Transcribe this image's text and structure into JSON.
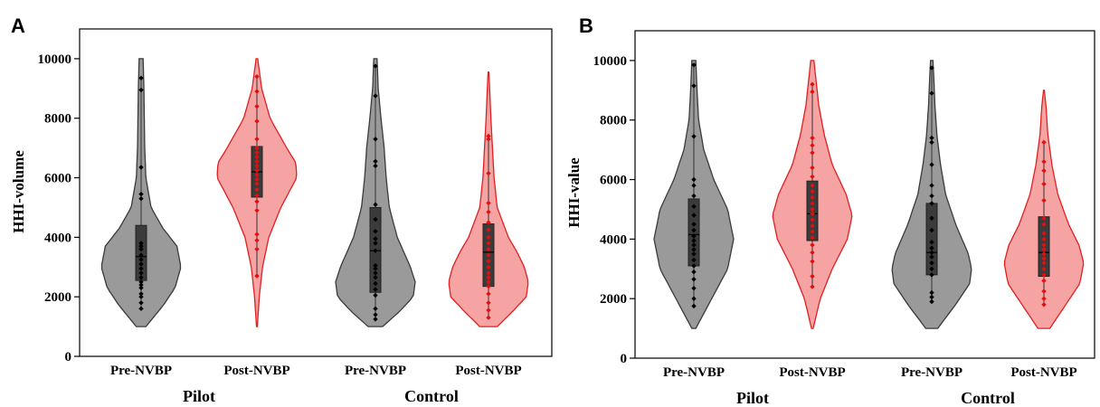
{
  "colors": {
    "pre_fill": "#9a9a9a",
    "pre_stroke": "#3a3a3a",
    "post_fill": "#f6a3a3",
    "post_stroke": "#e02020",
    "box_fill": "#3b3b3b",
    "pre_point": "#000000",
    "post_point": "#e01010"
  },
  "chart_data": [
    {
      "type": "violin",
      "panel_label": "A",
      "ylabel": "HHI-volume",
      "ylim": [
        0,
        11000
      ],
      "yticks": [
        0,
        2000,
        4000,
        6000,
        8000,
        10000
      ],
      "groups": [
        "Pilot",
        "Control"
      ],
      "categories": [
        "Pre-NVBP",
        "Post-NVBP",
        "Pre-NVBP",
        "Post-NVBP"
      ],
      "series": [
        {
          "category": "Pre-NVBP",
          "group": "Pilot",
          "style": "pre",
          "range": [
            1000,
            10000
          ],
          "density": [
            [
              1000,
              0.12
            ],
            [
              1700,
              0.55
            ],
            [
              2300,
              0.85
            ],
            [
              3000,
              1.0
            ],
            [
              3700,
              0.9
            ],
            [
              4300,
              0.55
            ],
            [
              5000,
              0.25
            ],
            [
              6000,
              0.12
            ],
            [
              7000,
              0.09
            ],
            [
              8000,
              0.08
            ],
            [
              9000,
              0.07
            ],
            [
              10000,
              0.05
            ]
          ],
          "box": {
            "q1": 2550,
            "median": 3350,
            "q3": 4400
          },
          "whisker": [
            1600,
            9350
          ],
          "points": [
            1600,
            1800,
            2000,
            2100,
            2300,
            2400,
            2500,
            2650,
            2800,
            2950,
            3100,
            3250,
            3400,
            3600,
            3700,
            3800,
            5300,
            5450,
            6350,
            8950,
            9350
          ]
        },
        {
          "category": "Post-NVBP",
          "group": "Pilot",
          "style": "post",
          "range": [
            1000,
            10000
          ],
          "density": [
            [
              1000,
              0.01
            ],
            [
              2000,
              0.06
            ],
            [
              3000,
              0.14
            ],
            [
              4000,
              0.3
            ],
            [
              5000,
              0.6
            ],
            [
              6000,
              1.0
            ],
            [
              6500,
              0.98
            ],
            [
              7000,
              0.75
            ],
            [
              8000,
              0.33
            ],
            [
              9000,
              0.12
            ],
            [
              10000,
              0.02
            ]
          ],
          "box": {
            "q1": 5350,
            "median": 6200,
            "q3": 7050
          },
          "whisker": [
            2700,
            9400
          ],
          "points": [
            2700,
            3600,
            3900,
            4100,
            4900,
            5200,
            5400,
            5600,
            5800,
            5950,
            6100,
            6250,
            6400,
            6550,
            6700,
            6850,
            7000,
            7300,
            7900,
            8400,
            8900,
            9400
          ]
        },
        {
          "category": "Pre-NVBP",
          "group": "Control",
          "style": "pre",
          "range": [
            1000,
            10000
          ],
          "density": [
            [
              1000,
              0.18
            ],
            [
              1500,
              0.6
            ],
            [
              2000,
              0.95
            ],
            [
              2500,
              1.0
            ],
            [
              3000,
              0.88
            ],
            [
              4000,
              0.55
            ],
            [
              5000,
              0.35
            ],
            [
              6000,
              0.27
            ],
            [
              7000,
              0.22
            ],
            [
              8000,
              0.14
            ],
            [
              9000,
              0.07
            ],
            [
              10000,
              0.04
            ]
          ],
          "box": {
            "q1": 2150,
            "median": 3550,
            "q3": 5000
          },
          "whisker": [
            1250,
            9750
          ],
          "points": [
            1250,
            1400,
            1600,
            2050,
            2250,
            2450,
            2650,
            2800,
            2950,
            3050,
            3550,
            3800,
            3950,
            4200,
            4600,
            5100,
            6400,
            6550,
            7300,
            8750,
            9750
          ]
        },
        {
          "category": "Post-NVBP",
          "group": "Control",
          "style": "post",
          "range": [
            1000,
            9550
          ],
          "density": [
            [
              1000,
              0.22
            ],
            [
              1500,
              0.6
            ],
            [
              2000,
              0.95
            ],
            [
              2500,
              1.0
            ],
            [
              3000,
              0.9
            ],
            [
              3500,
              0.72
            ],
            [
              4000,
              0.5
            ],
            [
              5000,
              0.22
            ],
            [
              6000,
              0.14
            ],
            [
              7000,
              0.1
            ],
            [
              8000,
              0.06
            ],
            [
              9000,
              0.03
            ],
            [
              9550,
              0.01
            ]
          ],
          "box": {
            "q1": 2350,
            "median": 3500,
            "q3": 4450
          },
          "whisker": [
            1300,
            7400
          ],
          "points": [
            1300,
            1550,
            1800,
            2100,
            2350,
            2500,
            2650,
            2800,
            3000,
            3200,
            3400,
            3600,
            3800,
            4000,
            4250,
            4500,
            4850,
            5150,
            6150,
            7300,
            7400
          ]
        }
      ]
    },
    {
      "type": "violin",
      "panel_label": "B",
      "ylabel": "HHI-value",
      "ylim": [
        0,
        11000
      ],
      "yticks": [
        0,
        2000,
        4000,
        6000,
        8000,
        10000
      ],
      "groups": [
        "Pilot",
        "Control"
      ],
      "categories": [
        "Pre-NVBP",
        "Post-NVBP",
        "Pre-NVBP",
        "Post-NVBP"
      ],
      "series": [
        {
          "category": "Pre-NVBP",
          "group": "Pilot",
          "style": "pre",
          "range": [
            1000,
            10000
          ],
          "density": [
            [
              1000,
              0.05
            ],
            [
              2000,
              0.45
            ],
            [
              3000,
              0.85
            ],
            [
              4000,
              1.0
            ],
            [
              5000,
              0.85
            ],
            [
              6000,
              0.5
            ],
            [
              7000,
              0.25
            ],
            [
              8000,
              0.12
            ],
            [
              9000,
              0.08
            ],
            [
              10000,
              0.05
            ]
          ],
          "box": {
            "q1": 3100,
            "median": 4150,
            "q3": 5350
          },
          "whisker": [
            1750,
            9850
          ],
          "points": [
            1750,
            2000,
            2350,
            2650,
            2900,
            3100,
            3300,
            3500,
            3650,
            3800,
            3950,
            4100,
            4300,
            4500,
            4800,
            5100,
            5450,
            5800,
            6000,
            7450,
            9150,
            9850
          ]
        },
        {
          "category": "Post-NVBP",
          "group": "Pilot",
          "style": "post",
          "range": [
            1000,
            10000
          ],
          "density": [
            [
              1000,
              0.02
            ],
            [
              2000,
              0.2
            ],
            [
              3000,
              0.5
            ],
            [
              4000,
              0.88
            ],
            [
              4800,
              1.0
            ],
            [
              5500,
              0.85
            ],
            [
              6500,
              0.5
            ],
            [
              7500,
              0.3
            ],
            [
              8500,
              0.16
            ],
            [
              9500,
              0.08
            ],
            [
              10000,
              0.04
            ]
          ],
          "box": {
            "q1": 3950,
            "median": 4850,
            "q3": 5950
          },
          "whisker": [
            2400,
            9200
          ],
          "points": [
            2400,
            2750,
            3250,
            3550,
            3800,
            4050,
            4250,
            4450,
            4650,
            4850,
            5000,
            5200,
            5400,
            5600,
            5800,
            6100,
            6400,
            6900,
            7150,
            7400,
            8950,
            9200
          ]
        },
        {
          "category": "Pre-NVBP",
          "group": "Control",
          "style": "pre",
          "range": [
            1000,
            10000
          ],
          "density": [
            [
              1000,
              0.15
            ],
            [
              1800,
              0.6
            ],
            [
              2500,
              0.95
            ],
            [
              3000,
              1.0
            ],
            [
              3500,
              0.92
            ],
            [
              4500,
              0.6
            ],
            [
              5500,
              0.35
            ],
            [
              6500,
              0.22
            ],
            [
              7500,
              0.13
            ],
            [
              8500,
              0.08
            ],
            [
              9500,
              0.05
            ],
            [
              10000,
              0.03
            ]
          ],
          "box": {
            "q1": 2800,
            "median": 3550,
            "q3": 5200
          },
          "whisker": [
            1900,
            9750
          ],
          "points": [
            1900,
            2050,
            2200,
            2800,
            3000,
            3200,
            3400,
            3550,
            3700,
            3900,
            4300,
            4700,
            5200,
            5450,
            5800,
            6500,
            7250,
            7400,
            8900,
            9750
          ]
        },
        {
          "category": "Post-NVBP",
          "group": "Control",
          "style": "post",
          "range": [
            1000,
            9000
          ],
          "density": [
            [
              1000,
              0.15
            ],
            [
              1800,
              0.55
            ],
            [
              2500,
              0.9
            ],
            [
              3200,
              1.0
            ],
            [
              3800,
              0.88
            ],
            [
              4500,
              0.62
            ],
            [
              5500,
              0.35
            ],
            [
              6500,
              0.2
            ],
            [
              7500,
              0.1
            ],
            [
              8500,
              0.05
            ],
            [
              9000,
              0.01
            ]
          ],
          "box": {
            "q1": 2750,
            "median": 3550,
            "q3": 4750
          },
          "whisker": [
            1800,
            7250
          ],
          "points": [
            1800,
            2000,
            2250,
            2600,
            2800,
            3000,
            3200,
            3350,
            3500,
            3650,
            3800,
            4000,
            4200,
            4500,
            4700,
            5300,
            5850,
            6300,
            6600,
            7250
          ]
        }
      ]
    }
  ]
}
